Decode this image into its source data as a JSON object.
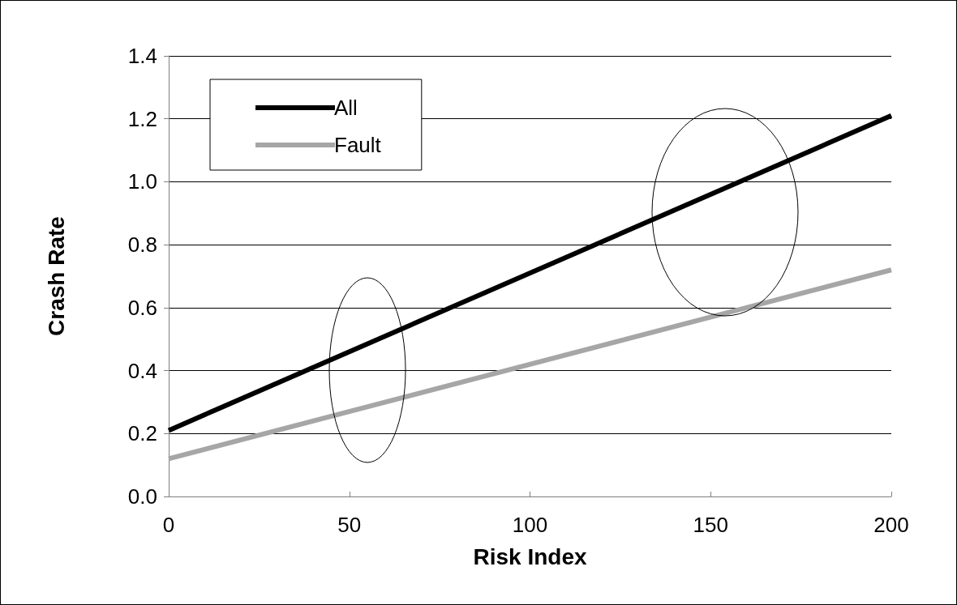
{
  "chart_data": {
    "type": "line",
    "xlabel": "Risk Index",
    "ylabel": "Crash Rate",
    "x": [
      0,
      200
    ],
    "series": [
      {
        "name": "All",
        "color": "#000000",
        "values": [
          0.21,
          1.21
        ]
      },
      {
        "name": "Fault",
        "color": "#a6a6a6",
        "values": [
          0.12,
          0.72
        ]
      }
    ],
    "xlim": [
      0,
      200
    ],
    "xticks": [
      0,
      50,
      100,
      150,
      200
    ],
    "ylim": [
      0,
      1.4
    ],
    "yticks": [
      {
        "value": 0,
        "label": "0.0"
      },
      0.2,
      0.4,
      0.6,
      0.8,
      {
        "value": 1,
        "label": "1.0"
      },
      1.2,
      1.4
    ],
    "grid": "y",
    "legend": "top left",
    "marker": "none",
    "line_style": "solid"
  }
}
